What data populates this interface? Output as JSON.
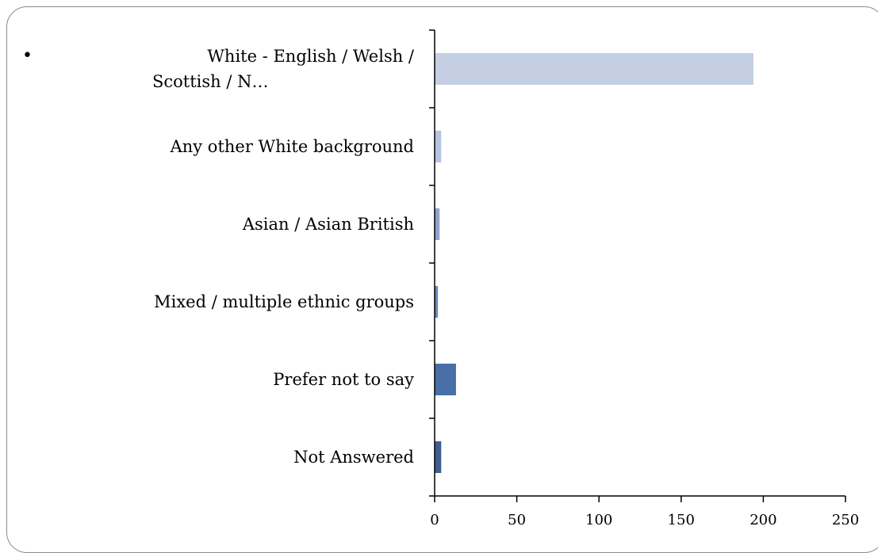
{
  "chart_data": {
    "type": "bar",
    "orientation": "horizontal",
    "bullet": "•",
    "categories": [
      "White - English / Welsh / Scottish / N…",
      "Any other White background",
      "Asian / Asian British",
      "Mixed / multiple ethnic groups",
      "Prefer not to say",
      "Not Answered"
    ],
    "category_lines": [
      [
        "White - English / Welsh /",
        "Scottish / N…"
      ],
      [
        "Any other White background"
      ],
      [
        "Asian / Asian British"
      ],
      [
        "Mixed / multiple ethnic groups"
      ],
      [
        "Prefer not to say"
      ],
      [
        "Not Answered"
      ]
    ],
    "values": [
      194,
      4,
      3,
      2,
      13,
      4
    ],
    "bar_colors": [
      "#c4cfe3",
      "#b6c5df",
      "#8ea3cc",
      "#6c87bb",
      "#4870a6",
      "#3f5e8d"
    ],
    "xlim": [
      0,
      250
    ],
    "xticks": [
      "0",
      "50",
      "100",
      "150",
      "200",
      "250"
    ],
    "title": "",
    "xlabel": "",
    "ylabel": "",
    "grid": false,
    "legend": "none"
  }
}
